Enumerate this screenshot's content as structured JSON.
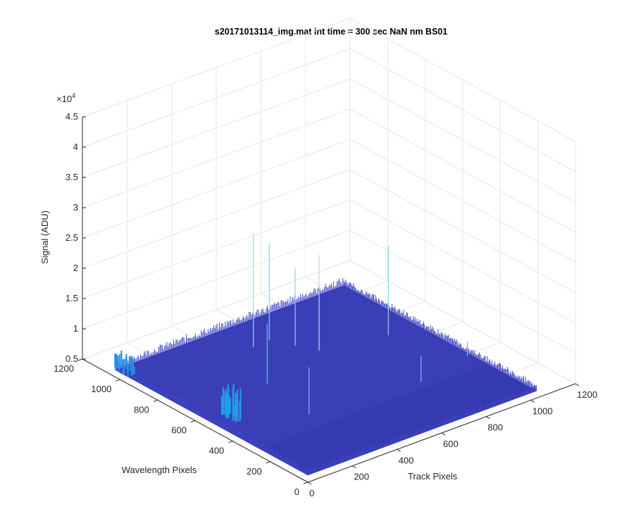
{
  "chart_data": {
    "type": "surface",
    "title": "s20171013114_img.mat int time = 300 sec  NaN nm BS01",
    "xlabel": "Track Pixels",
    "ylabel": "Wavelength Pixels",
    "zlabel": "Signal (ADU)",
    "z_exponent_label": "×10",
    "z_exponent_power": "4",
    "xlim": [
      0,
      1200
    ],
    "ylim": [
      0,
      1200
    ],
    "zlim": [
      5000,
      45000
    ],
    "x_ticks": [
      0,
      200,
      400,
      600,
      800,
      1000,
      1200
    ],
    "y_ticks": [
      0,
      200,
      400,
      600,
      800,
      1000,
      1200
    ],
    "z_ticks": [
      5000,
      10000,
      15000,
      20000,
      25000,
      30000,
      35000,
      40000,
      45000
    ],
    "x_tick_labels": [
      "0",
      "200",
      "400",
      "600",
      "800",
      "1000",
      "1200"
    ],
    "y_tick_labels": [
      "0",
      "200",
      "400",
      "600",
      "800",
      "1000",
      "1200"
    ],
    "z_tick_labels": [
      "0.5",
      "1",
      "1.5",
      "2",
      "2.5",
      "3",
      "3.5",
      "4",
      "4.5"
    ],
    "grid": true,
    "colormap": "parula",
    "surface_color": "#3a3fb8",
    "surface_extent": {
      "x": [
        0,
        1024
      ],
      "y": [
        0,
        1024
      ]
    },
    "baseline_level": 6200,
    "features": [
      {
        "kind": "hot_region",
        "x": 15,
        "y": 1000,
        "z": 9000,
        "color": "#1f8ee6"
      },
      {
        "kind": "hot_region",
        "x": 80,
        "y": 500,
        "z": 11500,
        "color": "#1fa0e8"
      },
      {
        "kind": "spike",
        "x": 480,
        "y": 860,
        "z": 25000,
        "color": "#9ad8f0"
      },
      {
        "kind": "spike",
        "x": 560,
        "y": 870,
        "z": 22000,
        "color": "#8fd0f0"
      },
      {
        "kind": "spike",
        "x": 600,
        "y": 780,
        "z": 19000,
        "color": "#8fd0f0"
      },
      {
        "kind": "spike",
        "x": 640,
        "y": 700,
        "z": 22000,
        "color": "#a8e0f0"
      },
      {
        "kind": "spike",
        "x": 900,
        "y": 640,
        "z": 21000,
        "color": "#8fd0f0"
      },
      {
        "kind": "spike",
        "x": 340,
        "y": 620,
        "z": 16000,
        "color": "#6cc0ea"
      },
      {
        "kind": "spike",
        "x": 300,
        "y": 350,
        "z": 14000,
        "color": "#6cc0ea"
      },
      {
        "kind": "spike",
        "x": 760,
        "y": 300,
        "z": 10500,
        "color": "#6cc0ea"
      },
      {
        "kind": "spike",
        "x": 1010,
        "y": 350,
        "z": 8500,
        "color": "#6cc0ea"
      }
    ]
  }
}
